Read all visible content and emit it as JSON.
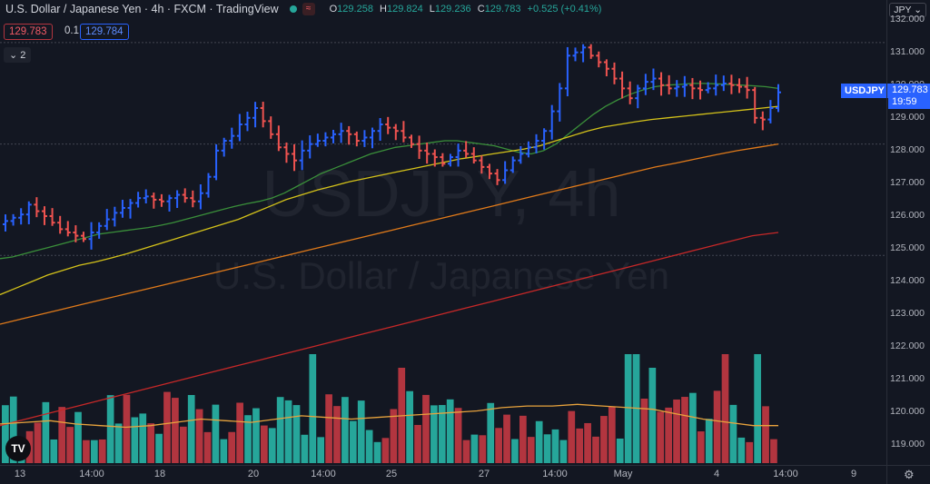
{
  "header": {
    "symbol_title": "U.S. Dollar / Japanese Yen · 4h · FXCM · TradingView",
    "ohlc": {
      "o_label": "O",
      "o": "129.258",
      "h_label": "H",
      "h": "129.824",
      "l_label": "L",
      "l": "129.236",
      "c_label": "C",
      "c": "129.783",
      "change": "+0.525 (+0.41%)"
    },
    "bid": "129.783",
    "spread": "0.1",
    "ask": "129.784",
    "indicators_toggle": "2"
  },
  "watermark": {
    "symbol": "USDJPY, 4h",
    "description": "U.S. Dollar / Japanese Yen"
  },
  "price_axis": {
    "currency_button": "JPY",
    "symbol_tag": "USDJPY",
    "last_price": "129.783",
    "countdown": "19:59"
  },
  "time_axis": {
    "labels": [
      "13",
      "14:00",
      "18",
      "20",
      "14:00",
      "25",
      "27",
      "14:00",
      "May",
      "4",
      "14:00",
      "9"
    ]
  },
  "logo": "TV",
  "colors": {
    "up": "#2962ff",
    "down": "#ef5350",
    "vol_up": "#26a69a",
    "vol_down": "#b2353f",
    "ma_green": "#3a8f3a",
    "ma_yellow": "#d4c21a",
    "ma_orange": "#e07a1a",
    "ma_red": "#c62828"
  },
  "chart_data": {
    "type": "candlestick",
    "symbol": "USDJPY",
    "timeframe": "4h",
    "y_ticks": [
      132,
      131,
      130,
      129,
      128,
      127,
      126,
      125,
      124,
      123,
      122,
      121,
      120,
      119
    ],
    "ylim": [
      118.4,
      132.6
    ],
    "closes": [
      125.85,
      125.95,
      126.05,
      126.35,
      126.15,
      126.0,
      125.8,
      125.6,
      125.5,
      125.4,
      125.3,
      125.5,
      125.7,
      125.9,
      126.1,
      126.25,
      126.4,
      126.55,
      126.6,
      126.5,
      126.45,
      126.55,
      126.65,
      126.55,
      126.45,
      126.7,
      127.2,
      128.0,
      128.3,
      128.45,
      128.8,
      129.0,
      129.3,
      128.9,
      128.5,
      128.1,
      127.9,
      127.7,
      128.0,
      128.2,
      128.3,
      128.4,
      128.5,
      128.6,
      128.5,
      128.3,
      128.4,
      128.6,
      128.8,
      128.7,
      128.6,
      128.4,
      128.2,
      128.0,
      127.9,
      127.8,
      127.6,
      127.8,
      128.0,
      127.9,
      127.7,
      127.5,
      127.3,
      127.1,
      127.4,
      127.7,
      127.9,
      128.1,
      128.3,
      128.6,
      129.2,
      129.9,
      130.9,
      131.0,
      131.15,
      130.9,
      130.7,
      130.5,
      130.2,
      129.9,
      129.6,
      129.9,
      130.1,
      130.2,
      130.0,
      129.9,
      129.95,
      130.0,
      129.9,
      129.85,
      129.9,
      130.0,
      130.05,
      130.0,
      129.95,
      129.85,
      129.0,
      128.95,
      129.3,
      129.78
    ],
    "ma_green": [
      124.7,
      124.75,
      124.85,
      124.95,
      125.05,
      125.15,
      125.25,
      125.35,
      125.45,
      125.5,
      125.55,
      125.6,
      125.65,
      125.72,
      125.8,
      125.9,
      126.0,
      126.1,
      126.2,
      126.3,
      126.38,
      126.45,
      126.55,
      126.7,
      126.9,
      127.1,
      127.3,
      127.45,
      127.6,
      127.75,
      127.9,
      128.0,
      128.1,
      128.15,
      128.2,
      128.25,
      128.3,
      128.3,
      128.25,
      128.2,
      128.15,
      128.05,
      127.95,
      127.9,
      128.0,
      128.2,
      128.5,
      128.8,
      129.1,
      129.35,
      129.55,
      129.72,
      129.85,
      129.95,
      130.0,
      130.02,
      130.05,
      130.05,
      130.04,
      130.02,
      130.0,
      129.98,
      129.95,
      129.9
    ],
    "ma_yellow": [
      123.6,
      123.8,
      124.0,
      124.2,
      124.35,
      124.5,
      124.6,
      124.72,
      124.85,
      125.0,
      125.15,
      125.3,
      125.45,
      125.6,
      125.75,
      125.9,
      126.1,
      126.3,
      126.5,
      126.65,
      126.8,
      126.92,
      127.05,
      127.15,
      127.25,
      127.35,
      127.45,
      127.55,
      127.65,
      127.75,
      127.82,
      127.9,
      127.97,
      128.05,
      128.15,
      128.3,
      128.45,
      128.6,
      128.72,
      128.8,
      128.88,
      128.95,
      129.0,
      129.05,
      129.1,
      129.15,
      129.2,
      129.25,
      129.3,
      129.35
    ],
    "ma_orange": [
      122.7,
      122.85,
      123.0,
      123.15,
      123.3,
      123.45,
      123.6,
      123.75,
      123.9,
      124.05,
      124.2,
      124.35,
      124.5,
      124.65,
      124.8,
      124.95,
      125.1,
      125.25,
      125.4,
      125.55,
      125.7,
      125.85,
      126.0,
      126.15,
      126.3,
      126.45,
      126.6,
      126.75,
      126.9,
      127.05,
      127.2,
      127.35,
      127.5,
      127.62,
      127.75,
      127.88,
      128.0,
      128.1,
      128.2
    ],
    "ma_red": [
      119.6,
      119.8,
      120.0,
      120.2,
      120.4,
      120.6,
      120.8,
      121.0,
      121.2,
      121.4,
      121.6,
      121.8,
      122.0,
      122.2,
      122.4,
      122.6,
      122.8,
      123.0,
      123.2,
      123.4,
      123.6,
      123.8,
      124.0,
      124.2,
      124.4,
      124.6,
      124.8,
      125.0,
      125.2,
      125.4,
      125.5
    ],
    "volume_ma": [
      119.65,
      119.7,
      119.75,
      119.65,
      119.6,
      119.55,
      119.6,
      119.7,
      119.8,
      119.75,
      119.7,
      119.8,
      119.9,
      119.85,
      119.8,
      119.85,
      119.9,
      119.95,
      120.0,
      120.05,
      120.15,
      120.2,
      120.2,
      120.25,
      120.2,
      120.15,
      120.1,
      119.95,
      119.8,
      119.7,
      119.6,
      119.6
    ],
    "dashed_levels": [
      131.3,
      128.2,
      124.8
    ]
  }
}
